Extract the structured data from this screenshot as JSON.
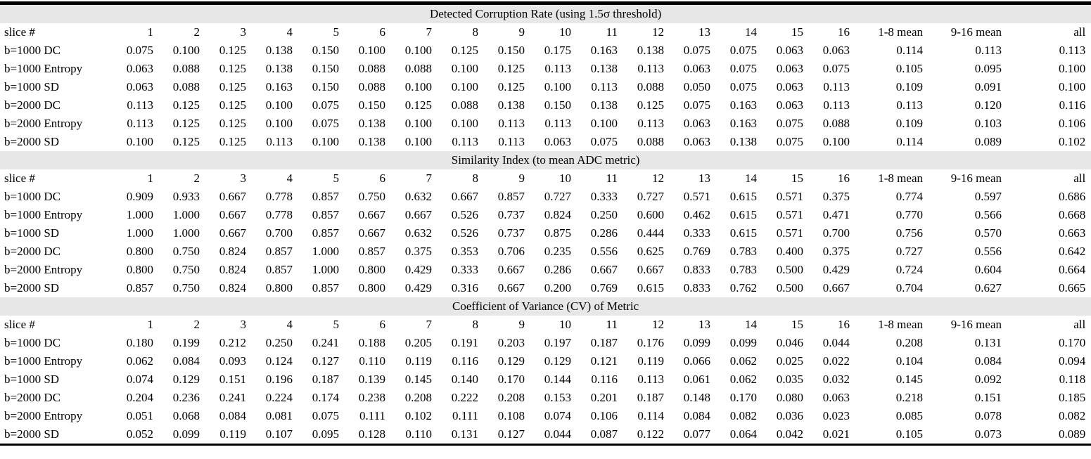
{
  "table": {
    "columns": [
      "slice #",
      "1",
      "2",
      "3",
      "4",
      "5",
      "6",
      "7",
      "8",
      "9",
      "10",
      "11",
      "12",
      "13",
      "14",
      "15",
      "16",
      "1-8 mean",
      "9-16 mean",
      "all"
    ],
    "sections": [
      {
        "title": "Detected Corruption Rate (using 1.5σ threshold)",
        "rows": [
          {
            "label": "b=1000 DC",
            "values": [
              "0.075",
              "0.100",
              "0.125",
              "0.138",
              "0.150",
              "0.100",
              "0.100",
              "0.125",
              "0.150",
              "0.175",
              "0.163",
              "0.138",
              "0.075",
              "0.075",
              "0.063",
              "0.063",
              "0.114",
              "0.113",
              "0.113"
            ]
          },
          {
            "label": "b=1000 Entropy",
            "values": [
              "0.063",
              "0.088",
              "0.125",
              "0.138",
              "0.150",
              "0.088",
              "0.088",
              "0.100",
              "0.125",
              "0.113",
              "0.138",
              "0.113",
              "0.063",
              "0.075",
              "0.063",
              "0.075",
              "0.105",
              "0.095",
              "0.100"
            ]
          },
          {
            "label": "b=1000 SD",
            "values": [
              "0.063",
              "0.088",
              "0.125",
              "0.163",
              "0.150",
              "0.088",
              "0.100",
              "0.100",
              "0.125",
              "0.100",
              "0.113",
              "0.088",
              "0.050",
              "0.075",
              "0.063",
              "0.113",
              "0.109",
              "0.091",
              "0.100"
            ]
          },
          {
            "label": "b=2000 DC",
            "values": [
              "0.113",
              "0.125",
              "0.125",
              "0.100",
              "0.075",
              "0.150",
              "0.125",
              "0.088",
              "0.138",
              "0.150",
              "0.138",
              "0.125",
              "0.075",
              "0.163",
              "0.063",
              "0.113",
              "0.113",
              "0.120",
              "0.116"
            ]
          },
          {
            "label": "b=2000 Entropy",
            "values": [
              "0.113",
              "0.125",
              "0.125",
              "0.100",
              "0.075",
              "0.138",
              "0.100",
              "0.100",
              "0.113",
              "0.113",
              "0.100",
              "0.113",
              "0.063",
              "0.163",
              "0.075",
              "0.088",
              "0.109",
              "0.103",
              "0.106"
            ]
          },
          {
            "label": "b=2000 SD",
            "values": [
              "0.100",
              "0.125",
              "0.125",
              "0.113",
              "0.100",
              "0.138",
              "0.100",
              "0.113",
              "0.113",
              "0.063",
              "0.075",
              "0.088",
              "0.063",
              "0.138",
              "0.075",
              "0.100",
              "0.114",
              "0.089",
              "0.102"
            ]
          }
        ]
      },
      {
        "title": "Similarity Index (to mean ADC metric)",
        "rows": [
          {
            "label": "b=1000 DC",
            "values": [
              "0.909",
              "0.933",
              "0.667",
              "0.778",
              "0.857",
              "0.750",
              "0.632",
              "0.667",
              "0.857",
              "0.727",
              "0.333",
              "0.727",
              "0.571",
              "0.615",
              "0.571",
              "0.375",
              "0.774",
              "0.597",
              "0.686"
            ]
          },
          {
            "label": "b=1000 Entropy",
            "values": [
              "1.000",
              "1.000",
              "0.667",
              "0.778",
              "0.857",
              "0.667",
              "0.667",
              "0.526",
              "0.737",
              "0.824",
              "0.250",
              "0.600",
              "0.462",
              "0.615",
              "0.571",
              "0.471",
              "0.770",
              "0.566",
              "0.668"
            ]
          },
          {
            "label": "b=1000 SD",
            "values": [
              "1.000",
              "1.000",
              "0.667",
              "0.700",
              "0.857",
              "0.667",
              "0.632",
              "0.526",
              "0.737",
              "0.875",
              "0.286",
              "0.444",
              "0.333",
              "0.615",
              "0.571",
              "0.700",
              "0.756",
              "0.570",
              "0.663"
            ]
          },
          {
            "label": "b=2000 DC",
            "values": [
              "0.800",
              "0.750",
              "0.824",
              "0.857",
              "1.000",
              "0.857",
              "0.375",
              "0.353",
              "0.706",
              "0.235",
              "0.556",
              "0.625",
              "0.769",
              "0.783",
              "0.400",
              "0.375",
              "0.727",
              "0.556",
              "0.642"
            ]
          },
          {
            "label": "b=2000 Entropy",
            "values": [
              "0.800",
              "0.750",
              "0.824",
              "0.857",
              "1.000",
              "0.800",
              "0.429",
              "0.333",
              "0.667",
              "0.286",
              "0.667",
              "0.667",
              "0.833",
              "0.783",
              "0.500",
              "0.429",
              "0.724",
              "0.604",
              "0.664"
            ]
          },
          {
            "label": "b=2000 SD",
            "values": [
              "0.857",
              "0.750",
              "0.824",
              "0.800",
              "0.857",
              "0.800",
              "0.429",
              "0.316",
              "0.667",
              "0.200",
              "0.769",
              "0.615",
              "0.833",
              "0.762",
              "0.500",
              "0.667",
              "0.704",
              "0.627",
              "0.665"
            ]
          }
        ]
      },
      {
        "title": "Coefficient of Variance (CV) of Metric",
        "rows": [
          {
            "label": "b=1000 DC",
            "values": [
              "0.180",
              "0.199",
              "0.212",
              "0.250",
              "0.241",
              "0.188",
              "0.205",
              "0.191",
              "0.203",
              "0.197",
              "0.187",
              "0.176",
              "0.099",
              "0.099",
              "0.046",
              "0.044",
              "0.208",
              "0.131",
              "0.170"
            ]
          },
          {
            "label": "b=1000 Entropy",
            "values": [
              "0.062",
              "0.084",
              "0.093",
              "0.124",
              "0.127",
              "0.110",
              "0.119",
              "0.116",
              "0.129",
              "0.129",
              "0.121",
              "0.119",
              "0.066",
              "0.062",
              "0.025",
              "0.022",
              "0.104",
              "0.084",
              "0.094"
            ]
          },
          {
            "label": "b=1000 SD",
            "values": [
              "0.074",
              "0.129",
              "0.151",
              "0.196",
              "0.187",
              "0.139",
              "0.145",
              "0.140",
              "0.170",
              "0.144",
              "0.116",
              "0.113",
              "0.061",
              "0.062",
              "0.035",
              "0.032",
              "0.145",
              "0.092",
              "0.118"
            ]
          },
          {
            "label": "b=2000 DC",
            "values": [
              "0.204",
              "0.236",
              "0.241",
              "0.224",
              "0.174",
              "0.238",
              "0.208",
              "0.222",
              "0.208",
              "0.153",
              "0.201",
              "0.187",
              "0.148",
              "0.170",
              "0.080",
              "0.063",
              "0.218",
              "0.151",
              "0.185"
            ]
          },
          {
            "label": "b=2000 Entropy",
            "values": [
              "0.051",
              "0.068",
              "0.084",
              "0.081",
              "0.075",
              "0.111",
              "0.102",
              "0.111",
              "0.108",
              "0.074",
              "0.106",
              "0.114",
              "0.084",
              "0.082",
              "0.036",
              "0.023",
              "0.085",
              "0.078",
              "0.082"
            ]
          },
          {
            "label": "b=2000 SD",
            "values": [
              "0.052",
              "0.099",
              "0.119",
              "0.107",
              "0.095",
              "0.128",
              "0.110",
              "0.131",
              "0.127",
              "0.044",
              "0.087",
              "0.122",
              "0.077",
              "0.064",
              "0.042",
              "0.021",
              "0.105",
              "0.073",
              "0.089"
            ]
          }
        ]
      }
    ],
    "colors": {
      "section_band": "#e7e7e7",
      "rule": "#000000"
    }
  }
}
